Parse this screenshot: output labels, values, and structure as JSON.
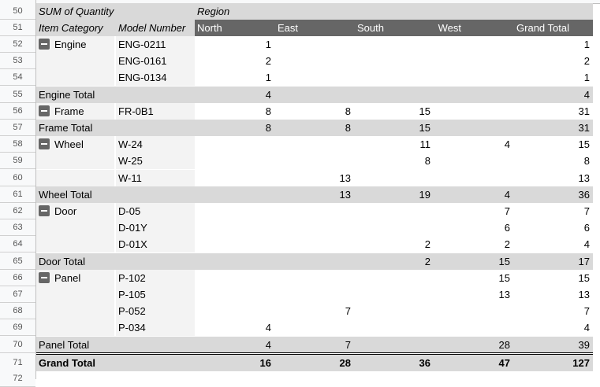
{
  "pivot": {
    "value_label": "SUM of Quantity",
    "column_field": "Region",
    "row_fields": [
      "Item Category",
      "Model Number"
    ],
    "columns": [
      "North",
      "East",
      "South",
      "West",
      "Grand Total"
    ],
    "rows": [
      {
        "n": "52",
        "type": "data",
        "category": "Engine",
        "model": "ENG-0211",
        "values": [
          "1",
          "",
          "",
          "",
          "1"
        ]
      },
      {
        "n": "53",
        "type": "data",
        "category": "",
        "model": "ENG-0161",
        "values": [
          "2",
          "",
          "",
          "",
          "2"
        ]
      },
      {
        "n": "54",
        "type": "data",
        "category": "",
        "model": "ENG-0134",
        "values": [
          "1",
          "",
          "",
          "",
          "1"
        ]
      },
      {
        "n": "55",
        "type": "total",
        "label": "Engine Total",
        "values": [
          "4",
          "",
          "",
          "",
          "4"
        ]
      },
      {
        "n": "56",
        "type": "data",
        "category": "Frame",
        "model": "FR-0B1",
        "values": [
          "8",
          "8",
          "15",
          "",
          "31"
        ]
      },
      {
        "n": "57",
        "type": "total",
        "label": "Frame Total",
        "values": [
          "8",
          "8",
          "15",
          "",
          "31"
        ]
      },
      {
        "n": "58",
        "type": "data",
        "category": "Wheel",
        "model": "W-24",
        "values": [
          "",
          "",
          "11",
          "4",
          "15"
        ]
      },
      {
        "n": "59",
        "type": "data",
        "category": "",
        "model": "W-25",
        "values": [
          "",
          "",
          "8",
          "",
          "8"
        ]
      },
      {
        "n": "60",
        "type": "data",
        "category": "",
        "model": "W-11",
        "values": [
          "",
          "13",
          "",
          "",
          "13"
        ]
      },
      {
        "n": "61",
        "type": "total",
        "label": "Wheel Total",
        "values": [
          "",
          "13",
          "19",
          "4",
          "36"
        ]
      },
      {
        "n": "62",
        "type": "data",
        "category": "Door",
        "model": "D-05",
        "values": [
          "",
          "",
          "",
          "7",
          "7"
        ]
      },
      {
        "n": "63",
        "type": "data",
        "category": "",
        "model": "D-01Y",
        "values": [
          "",
          "",
          "",
          "6",
          "6"
        ]
      },
      {
        "n": "64",
        "type": "data",
        "category": "",
        "model": "D-01X",
        "values": [
          "",
          "",
          "2",
          "2",
          "4"
        ]
      },
      {
        "n": "65",
        "type": "total",
        "label": "Door Total",
        "values": [
          "",
          "",
          "2",
          "15",
          "17"
        ]
      },
      {
        "n": "66",
        "type": "data",
        "category": "Panel",
        "model": "P-102",
        "values": [
          "",
          "",
          "",
          "15",
          "15"
        ]
      },
      {
        "n": "67",
        "type": "data",
        "category": "",
        "model": "P-105",
        "values": [
          "",
          "",
          "",
          "13",
          "13"
        ]
      },
      {
        "n": "68",
        "type": "data",
        "category": "",
        "model": "P-052",
        "values": [
          "",
          "7",
          "",
          "",
          "7"
        ]
      },
      {
        "n": "69",
        "type": "data",
        "category": "",
        "model": "P-034",
        "values": [
          "4",
          "",
          "",
          "",
          "4"
        ]
      },
      {
        "n": "70",
        "type": "total",
        "label": "Panel Total",
        "values": [
          "4",
          "7",
          "",
          "28",
          "39"
        ]
      },
      {
        "n": "71",
        "type": "grand",
        "label": "Grand Total",
        "values": [
          "16",
          "28",
          "36",
          "47",
          "127"
        ]
      }
    ]
  },
  "row_numbers": {
    "r50": "50",
    "r51": "51",
    "r72": "72"
  },
  "colors": {
    "header_dark": "#666666",
    "total_bg": "#d9d9d9",
    "category_bg": "#f3f3f3"
  }
}
